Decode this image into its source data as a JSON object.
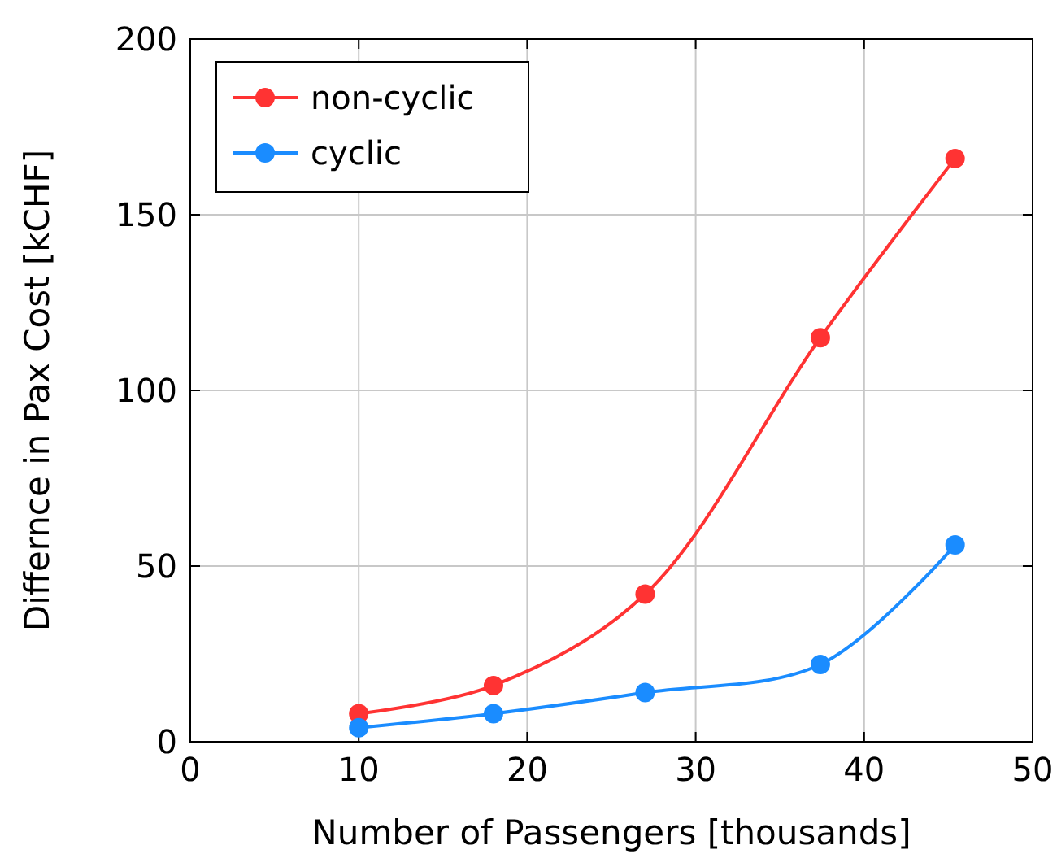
{
  "chart_data": {
    "type": "line",
    "xlabel": "Number of Passengers [thousands]",
    "ylabel": "Differnce in Pax Cost [kCHF]",
    "x": [
      10,
      18,
      27,
      37.4,
      45.4
    ],
    "series": [
      {
        "name": "non-cyclic",
        "color": "#ff3333",
        "values": [
          8,
          16,
          42,
          115,
          166
        ]
      },
      {
        "name": "cyclic",
        "color": "#1a8cff",
        "values": [
          4,
          8,
          14,
          22,
          56
        ]
      }
    ],
    "xlim": [
      0,
      50
    ],
    "xticks": [
      0,
      10,
      20,
      30,
      40,
      50
    ],
    "ylim": [
      0,
      200
    ],
    "yticks": [
      0,
      50,
      100,
      150,
      200
    ],
    "grid": true,
    "legend": "top left",
    "marker": "circle",
    "line_style": "solid"
  }
}
